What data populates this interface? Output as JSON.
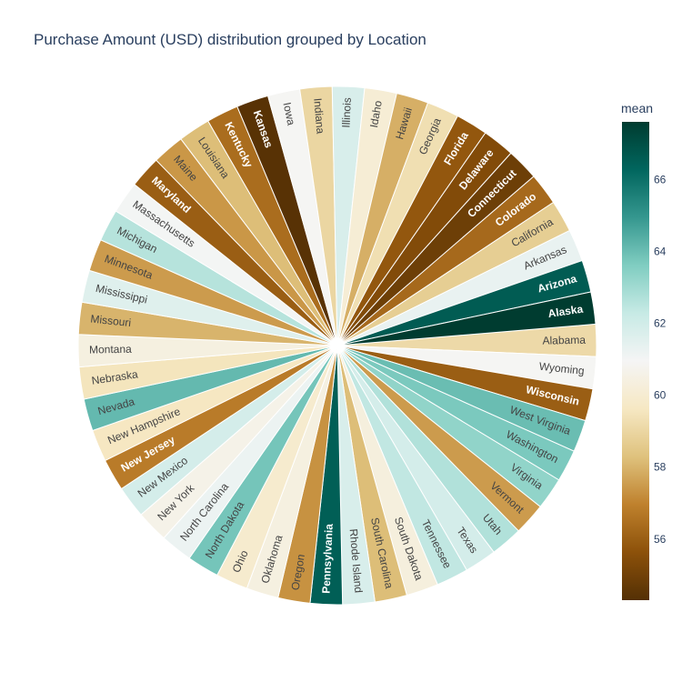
{
  "chart_data": {
    "type": "pie",
    "title": "Purchase Amount (USD) distribution grouped by Location",
    "slice_values": "equal-width wedges (sunburst-style), one per location",
    "categories": [
      "Alabama",
      "Wyoming",
      "Wisconsin",
      "West Virginia",
      "Washington",
      "Virginia",
      "Vermont",
      "Utah",
      "Texas",
      "Tennessee",
      "South Dakota",
      "South Carolina",
      "Rhode Island",
      "Pennsylvania",
      "Oregon",
      "Oklahoma",
      "Ohio",
      "North Dakota",
      "North Carolina",
      "New York",
      "New Mexico",
      "New Jersey",
      "New Hampshire",
      "Nevada",
      "Nebraska",
      "Montana",
      "Missouri",
      "Mississippi",
      "Minnesota",
      "Michigan",
      "Massachusetts",
      "Maryland",
      "Maine",
      "Louisiana",
      "Kentucky",
      "Kansas",
      "Iowa",
      "Indiana",
      "Illinois",
      "Idaho",
      "Hawaii",
      "Georgia",
      "Florida",
      "Delaware",
      "Connecticut",
      "Colorado",
      "California",
      "Arkansas",
      "Arizona",
      "Alaska"
    ],
    "mean_values": [
      59.1,
      60.9,
      56.0,
      64.0,
      63.7,
      63.3,
      57.5,
      62.7,
      61.9,
      62.4,
      60.3,
      58.2,
      61.8,
      66.5,
      57.3,
      60.4,
      59.9,
      63.8,
      61.2,
      60.6,
      61.9,
      56.8,
      59.6,
      64.1,
      59.5,
      60.4,
      58.0,
      61.6,
      57.5,
      62.6,
      61.0,
      56.0,
      57.4,
      58.2,
      56.4,
      54.4,
      60.9,
      59.0,
      61.8,
      60.1,
      57.9,
      59.3,
      55.8,
      55.4,
      54.9,
      56.3,
      58.7,
      61.3,
      66.6,
      67.6
    ],
    "colorbar": {
      "title": "mean",
      "range": [
        54.3,
        67.6
      ],
      "ticks": [
        56,
        58,
        60,
        62,
        64,
        66
      ]
    },
    "colorscale_name": "BrBG"
  }
}
